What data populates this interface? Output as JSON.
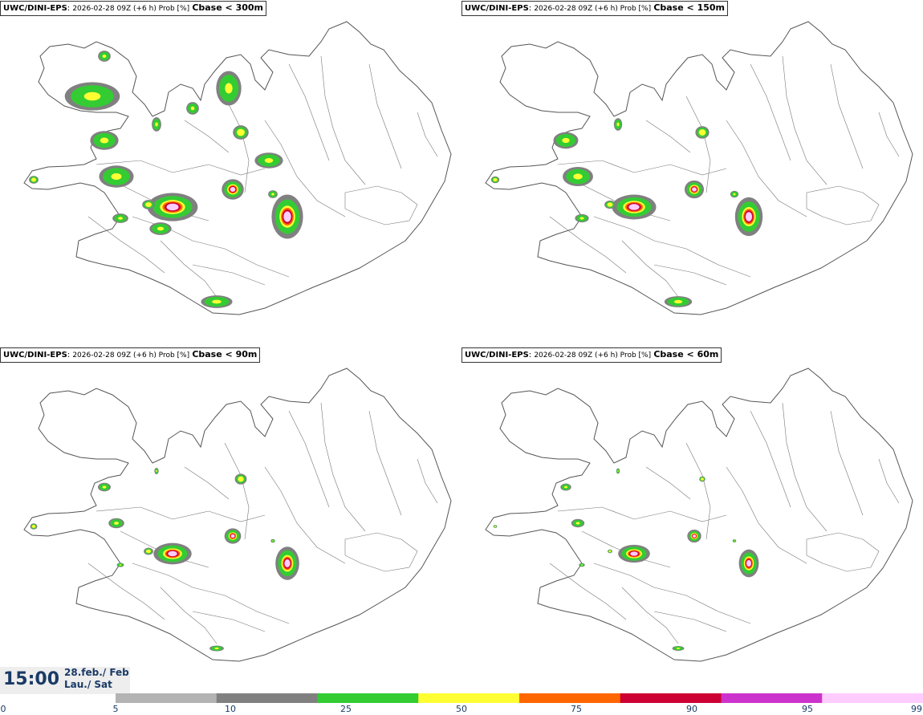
{
  "panels": [
    {
      "model": "UWC/DINI-EPS",
      "run": "2026-02-28 09Z (+6 h) Prob [%]",
      "threshold": "Cbase < 300m",
      "level": 4
    },
    {
      "model": "UWC/DINI-EPS",
      "run": "2026-02-28 09Z (+6 h) Prob [%]",
      "threshold": "Cbase < 150m",
      "level": 3
    },
    {
      "model": "UWC/DINI-EPS",
      "run": "2026-02-28 09Z (+6 h) Prob [%]",
      "threshold": "Cbase < 90m",
      "level": 2
    },
    {
      "model": "UWC/DINI-EPS",
      "run": "2026-02-28 09Z (+6 h) Prob [%]",
      "threshold": "Cbase < 60m",
      "level": 1
    }
  ],
  "time": {
    "clock": "15:00",
    "date_line1": "28.feb./ Feb",
    "date_line2": "Lau./ Sat"
  },
  "legend": {
    "ticks": [
      "0",
      "5",
      "10",
      "25",
      "50",
      "75",
      "90",
      "95",
      "99"
    ],
    "colors": [
      "#b3b3b3",
      "#808080",
      "#33cc33",
      "#ffff33",
      "#ff6600",
      "#cc0033",
      "#cc33cc",
      "#ffccff"
    ]
  }
}
